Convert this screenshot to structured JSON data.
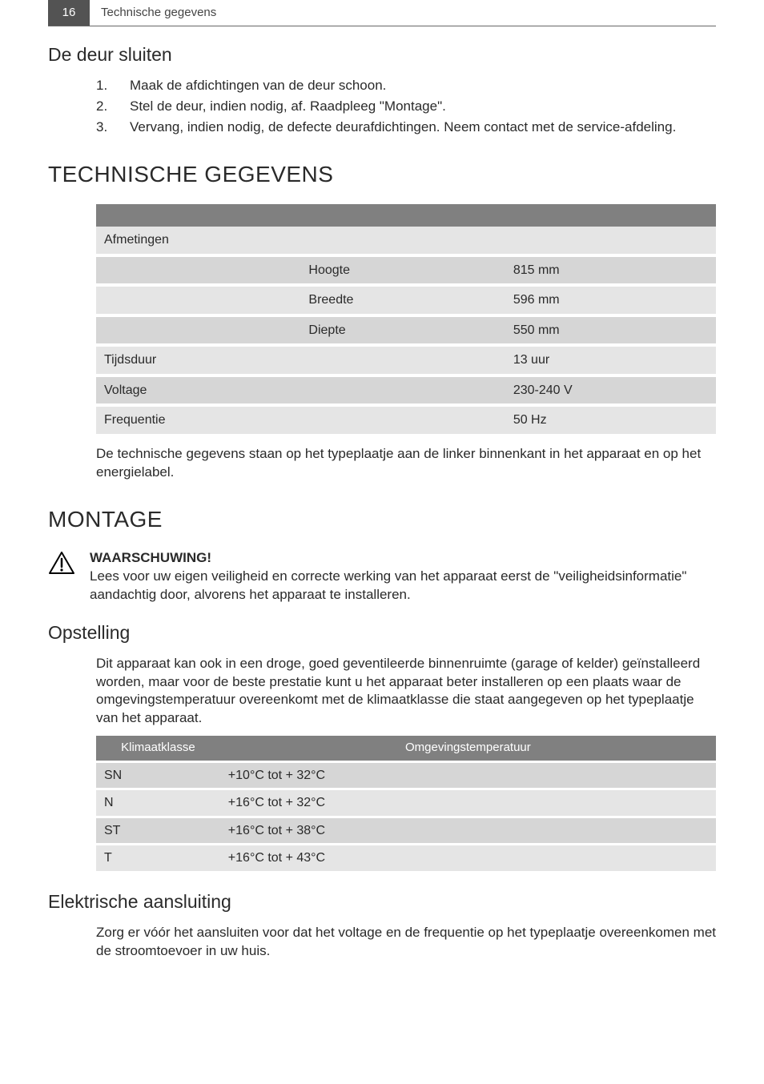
{
  "header": {
    "page_number": "16",
    "section": "Technische gegevens"
  },
  "section1": {
    "heading": "De deur sluiten",
    "items": [
      {
        "num": "1.",
        "text": "Maak de afdichtingen van de deur schoon."
      },
      {
        "num": "2.",
        "text": "Stel de deur, indien nodig, af. Raadpleeg \"Montage\"."
      },
      {
        "num": "3.",
        "text": "Vervang, indien nodig, de defecte deurafdichtingen. Neem contact met de service-afdeling."
      }
    ]
  },
  "tech": {
    "heading": "TECHNISCHE GEGEVENS",
    "rows": [
      {
        "l": "Afmetingen",
        "m": "",
        "r": "",
        "bg": "#e5e5e5"
      },
      {
        "l": "",
        "m": "Hoogte",
        "r": "815 mm",
        "bg": "#d6d6d6"
      },
      {
        "l": "",
        "m": "Breedte",
        "r": "596 mm",
        "bg": "#e5e5e5"
      },
      {
        "l": "",
        "m": "Diepte",
        "r": "550 mm",
        "bg": "#d6d6d6"
      },
      {
        "l": "Tijdsduur",
        "m": "",
        "r": "13 uur",
        "bg": "#e5e5e5"
      },
      {
        "l": "Voltage",
        "m": "",
        "r": "230-240 V",
        "bg": "#d6d6d6"
      },
      {
        "l": "Frequentie",
        "m": "",
        "r": "50 Hz",
        "bg": "#e5e5e5"
      }
    ],
    "note": "De technische gegevens staan op het typeplaatje aan de linker binnenkant in het apparaat en op het energielabel."
  },
  "montage": {
    "heading": "MONTAGE",
    "warning_label": "WAARSCHUWING!",
    "warning_text": "Lees voor uw eigen veiligheid en correcte werking van het apparaat eerst de \"veiligheidsinformatie\" aandachtig door, alvorens het apparaat te installeren."
  },
  "opstelling": {
    "heading": "Opstelling",
    "intro": "Dit apparaat kan ook in een droge, goed geventileerde binnenruimte (garage of kelder) geïnstalleerd worden, maar voor de beste prestatie kunt u het apparaat beter installeren op een plaats waar de omgevingstemperatuur overeenkomt met de klimaatklasse die staat aangegeven op het typeplaatje van het apparaat.",
    "table": {
      "headers": [
        "Klimaatklasse",
        "Omgevingstemperatuur"
      ],
      "rows": [
        {
          "k": "SN",
          "t": "+10°C tot + 32°C",
          "bg": "#d6d6d6"
        },
        {
          "k": "N",
          "t": "+16°C tot + 32°C",
          "bg": "#e5e5e5"
        },
        {
          "k": "ST",
          "t": "+16°C tot + 38°C",
          "bg": "#d6d6d6"
        },
        {
          "k": "T",
          "t": "+16°C tot + 43°C",
          "bg": "#e5e5e5"
        }
      ]
    }
  },
  "elektrisch": {
    "heading": "Elektrische aansluiting",
    "text": "Zorg er vóór het aansluiten voor dat het voltage en de frequentie op het typeplaatje overeenkomen met de stroomtoevoer in uw huis."
  },
  "colors": {
    "header_bg": "#535353",
    "table_header_bg": "#808080"
  }
}
